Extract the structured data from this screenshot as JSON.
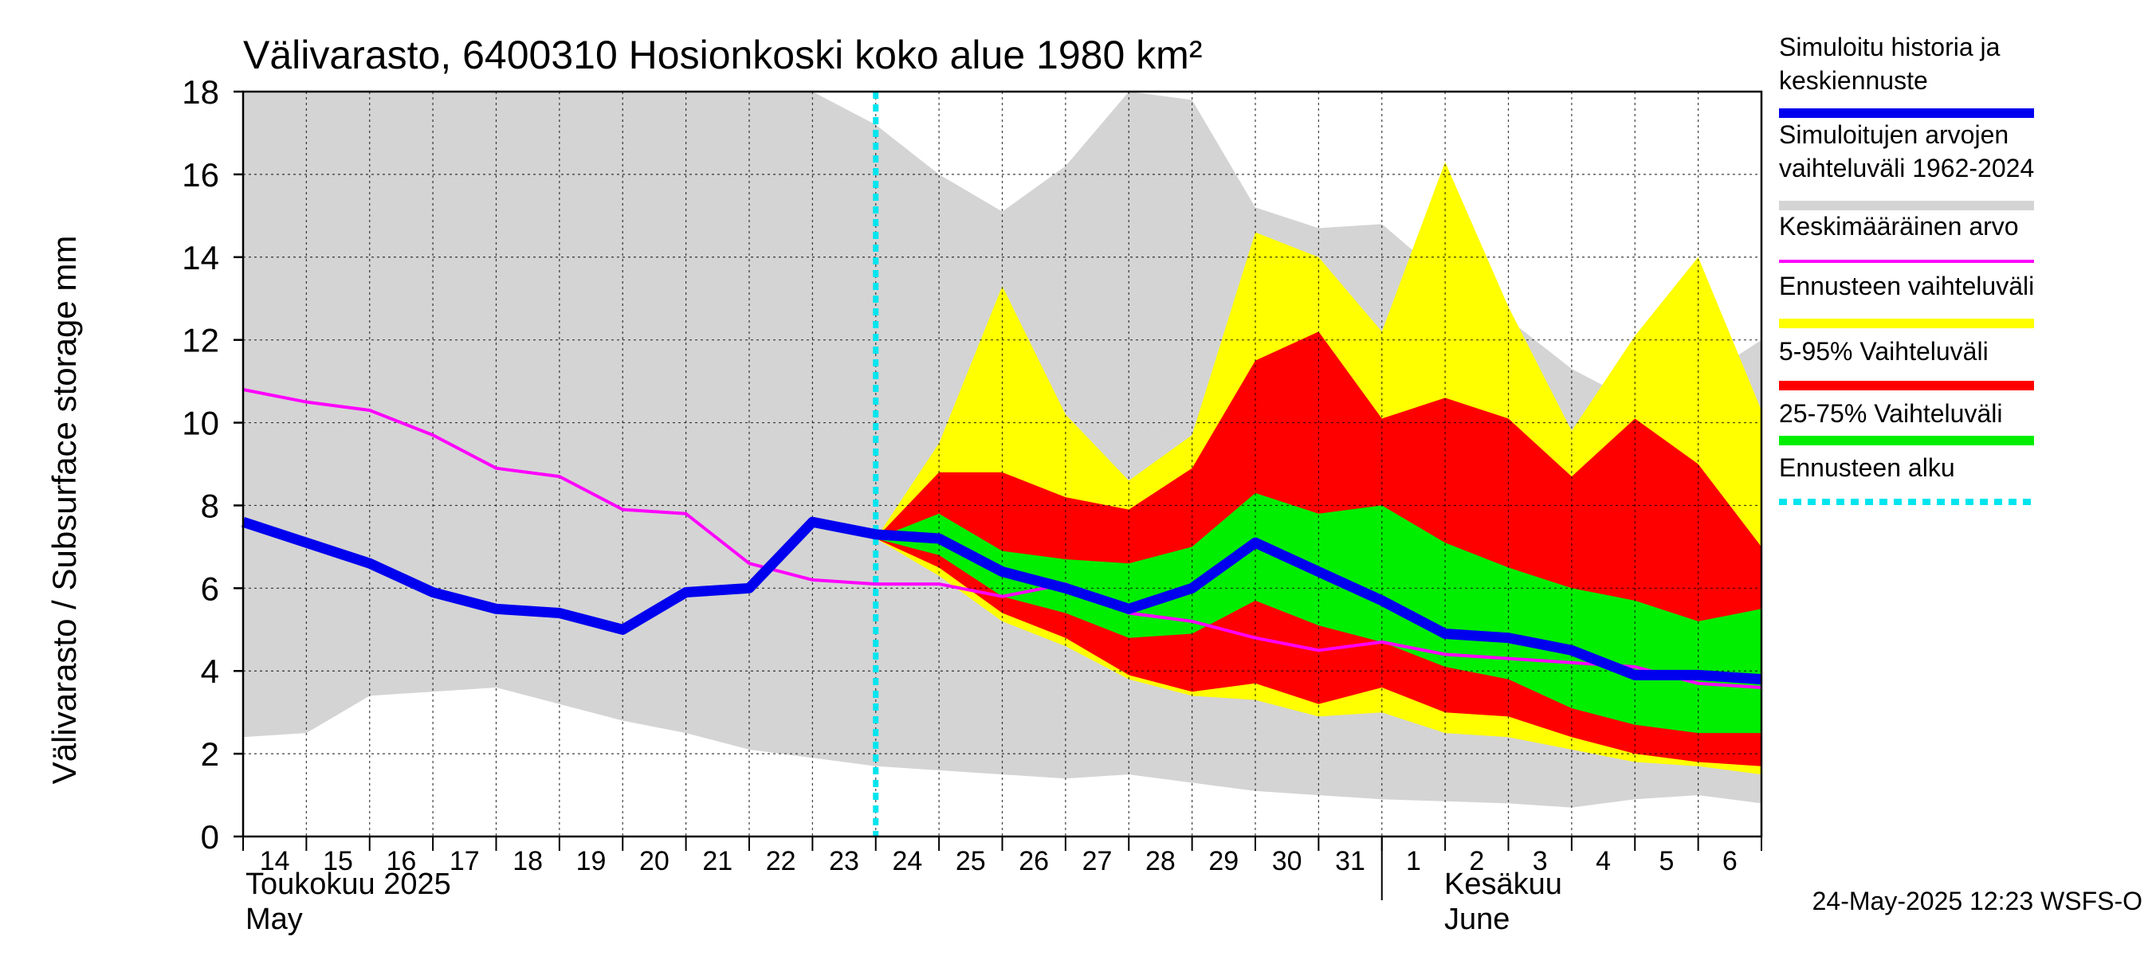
{
  "chart_data": {
    "type": "area",
    "title": "Välivarasto, 6400310 Hosionkoski koko alue 1980 km²",
    "ylabel": "Välivarasto / Subsurface storage  mm",
    "ylim": [
      0,
      18
    ],
    "yticks": [
      0,
      2,
      4,
      6,
      8,
      10,
      12,
      14,
      16,
      18
    ],
    "grid": true,
    "legend_placement": "right",
    "x_day_labels": [
      "14",
      "15",
      "16",
      "17",
      "18",
      "19",
      "20",
      "21",
      "22",
      "23",
      "24",
      "25",
      "26",
      "27",
      "28",
      "29",
      "30",
      "31",
      "1",
      "2",
      "3",
      "4",
      "5",
      "6"
    ],
    "x": [
      "2025-05-14",
      "2025-05-15",
      "2025-05-16",
      "2025-05-17",
      "2025-05-18",
      "2025-05-19",
      "2025-05-20",
      "2025-05-21",
      "2025-05-22",
      "2025-05-23",
      "2025-05-24",
      "2025-05-25",
      "2025-05-26",
      "2025-05-27",
      "2025-05-28",
      "2025-05-29",
      "2025-05-30",
      "2025-05-31",
      "2025-06-01",
      "2025-06-02",
      "2025-06-03",
      "2025-06-04",
      "2025-06-05",
      "2025-06-06",
      "2025-06-07"
    ],
    "month_labels": [
      {
        "line1": "Toukokuu  2025",
        "line2": "May"
      },
      {
        "line1": "Kesäkuu",
        "line2": "June"
      }
    ],
    "forecast_start": "2025-05-24",
    "series": [
      {
        "name": "Simuloitujen arvojen vaihteluväli 1962-2024",
        "kind": "band",
        "x_start": "2025-05-14",
        "lower": [
          2.4,
          2.5,
          3.4,
          3.5,
          3.6,
          3.2,
          2.8,
          2.5,
          2.1,
          1.9,
          1.7,
          1.6,
          1.5,
          1.4,
          1.5,
          1.3,
          1.1,
          1.0,
          0.9,
          0.85,
          0.8,
          0.7,
          0.9,
          1.0,
          0.8
        ],
        "upper": [
          18,
          18,
          18,
          18,
          18,
          18,
          18,
          18,
          18,
          18,
          17.2,
          16.0,
          15.1,
          16.2,
          18.0,
          17.8,
          15.2,
          14.7,
          14.8,
          13.5,
          12.5,
          11.3,
          10.5,
          11.0,
          12.0
        ]
      },
      {
        "name": "Ennusteen vaihteluväli",
        "kind": "band",
        "x_start": "2025-05-24",
        "lower": [
          7.2,
          6.3,
          5.2,
          4.6,
          3.8,
          3.4,
          3.3,
          2.9,
          3.0,
          2.5,
          2.4,
          2.1,
          1.8,
          1.7,
          1.5
        ],
        "upper": [
          7.2,
          9.5,
          13.3,
          10.2,
          8.6,
          9.7,
          14.6,
          14.0,
          12.2,
          16.3,
          12.8,
          9.8,
          12.1,
          14.0,
          10.3
        ]
      },
      {
        "name": "5-95% Vaihteluväli",
        "kind": "band",
        "x_start": "2025-05-24",
        "lower": [
          7.2,
          6.5,
          5.4,
          4.8,
          3.9,
          3.5,
          3.7,
          3.2,
          3.6,
          3.0,
          2.9,
          2.4,
          2.0,
          1.8,
          1.7
        ],
        "upper": [
          7.2,
          8.8,
          8.8,
          8.2,
          7.9,
          8.9,
          11.5,
          12.2,
          10.1,
          10.6,
          10.1,
          8.7,
          10.1,
          9.0,
          7.0
        ]
      },
      {
        "name": "25-75% Vaihteluväli",
        "kind": "band",
        "x_start": "2025-05-24",
        "lower": [
          7.2,
          6.8,
          5.8,
          5.4,
          4.8,
          4.9,
          5.7,
          5.1,
          4.7,
          4.1,
          3.8,
          3.1,
          2.7,
          2.5,
          2.5
        ],
        "upper": [
          7.2,
          7.8,
          6.9,
          6.7,
          6.6,
          7.0,
          8.3,
          7.8,
          8.0,
          7.1,
          6.5,
          6.0,
          5.7,
          5.2,
          5.5
        ]
      },
      {
        "name": "Keskimääräinen arvo",
        "kind": "line",
        "color": "#ff00ff",
        "x_start": "2025-05-14",
        "values": [
          10.8,
          10.5,
          10.3,
          9.7,
          8.9,
          8.7,
          7.9,
          7.8,
          6.6,
          6.2,
          6.1,
          6.1,
          5.8,
          6.1,
          5.4,
          5.2,
          4.8,
          4.5,
          4.7,
          4.4,
          4.3,
          4.2,
          4.1,
          3.7,
          3.6
        ]
      },
      {
        "name": "Simuloitu historia ja keskiennuste",
        "kind": "line",
        "color": "#0000ee",
        "x_start": "2025-05-14",
        "values": [
          7.6,
          7.1,
          6.6,
          5.9,
          5.5,
          5.4,
          5.0,
          5.9,
          6.0,
          7.6,
          7.3,
          7.2,
          6.4,
          6.0,
          5.5,
          6.0,
          7.1,
          6.4,
          5.7,
          4.9,
          4.8,
          4.5,
          3.9,
          3.9,
          3.8
        ]
      }
    ],
    "legend": [
      {
        "label": "Simuloitu historia ja keskiennuste",
        "color": "#0000ee",
        "style": "thick"
      },
      {
        "label": "Simuloitujen arvojen vaihteluväli 1962-2024",
        "color": "#d4d4d4",
        "style": "thick"
      },
      {
        "label": "Keskimääräinen arvo",
        "color": "#ff00ff",
        "style": "thin"
      },
      {
        "label": "Ennusteen vaihteluväli",
        "color": "#ffff00",
        "style": "thick"
      },
      {
        "label": "5-95% Vaihteluväli",
        "color": "#ff0000",
        "style": "thick"
      },
      {
        "label": "25-75% Vaihteluväli",
        "color": "#00ee00",
        "style": "thick"
      },
      {
        "label": "Ennusteen alku",
        "color": "#00e5ee",
        "style": "dotted"
      }
    ],
    "footer": "24-May-2025 12:23 WSFS-O"
  },
  "colors": {
    "history_band": "#d4d4d4",
    "forecast_band": "#ffff00",
    "band_5_95": "#ff0000",
    "band_25_75": "#00ee00",
    "mean_line": "#ff00ff",
    "median_line": "#0000ee",
    "forecast_start_line": "#00e5ee"
  }
}
